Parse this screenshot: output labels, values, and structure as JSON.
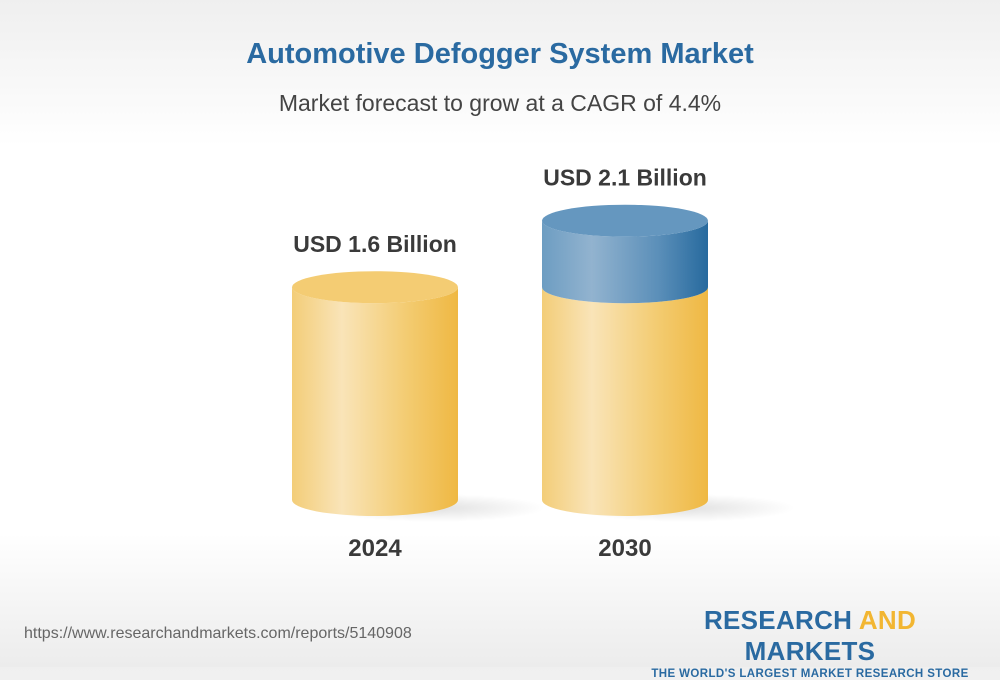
{
  "title": "Automotive Defogger System Market",
  "subtitle": "Market forecast to grow at a CAGR of 4.4%",
  "chart_data": {
    "type": "bar",
    "style": "3d-cylinder",
    "categories": [
      "2024",
      "2030"
    ],
    "values": [
      1.6,
      2.1
    ],
    "unit": "USD Billion",
    "data_labels": [
      "USD 1.6 Billion",
      "USD 2.1 Billion"
    ],
    "growth_highlight": "portion of 2030 above 2024 value shown in blue",
    "colors": {
      "base": "#f2c35a",
      "growth": "#3f7bab"
    },
    "grid": false,
    "legend": "none"
  },
  "footer": {
    "url": "https://www.researchandmarkets.com/reports/5140908",
    "logo_part1": "RESEARCH ",
    "logo_part2": "AND",
    "logo_part3": " MARKETS",
    "logo_tagline": "THE WORLD'S LARGEST MARKET RESEARCH STORE"
  }
}
